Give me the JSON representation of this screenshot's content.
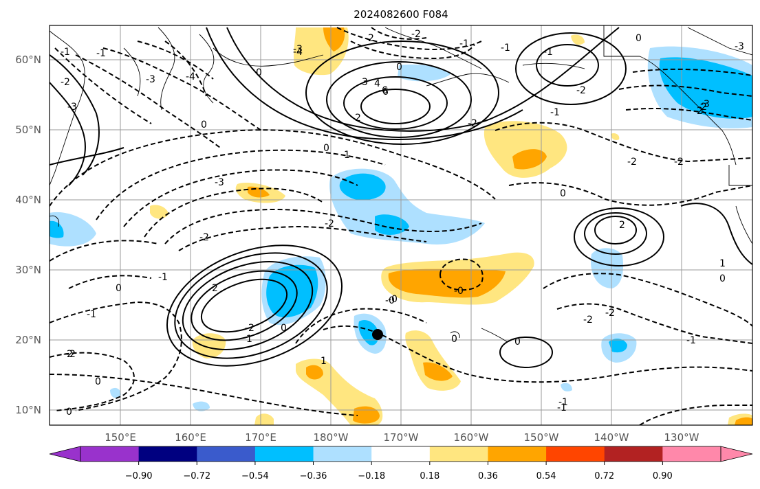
{
  "title": "2024082600 F084",
  "longitude_labels": [
    "150°E",
    "160°E",
    "170°E",
    "180°W",
    "170°W",
    "160°W",
    "150°W",
    "140°W",
    "130°W"
  ],
  "latitude_labels": [
    "60°N",
    "50°N",
    "40°N",
    "30°N",
    "20°N",
    "10°N"
  ],
  "colorbar": {
    "ticks": [
      "−0.90",
      "−0.72",
      "−0.54",
      "−0.36",
      "−0.18",
      "0.18",
      "0.36",
      "0.54",
      "0.72",
      "0.90"
    ],
    "colors": [
      "#9932cc",
      "#000080",
      "#3a5bcc",
      "#00bfff",
      "#aee0ff",
      "#ffffff",
      "#ffe680",
      "#ffa500",
      "#ff4500",
      "#b22222",
      "#ff88aa"
    ]
  },
  "contour_labels": [
    "-2",
    "-3",
    "-1",
    "-4",
    "-3",
    "0",
    "-1",
    "-2",
    "-3",
    "-4",
    "-6",
    "0",
    "-2",
    "-1",
    "-2",
    "0",
    "-3",
    "0",
    "1",
    "0",
    "-1",
    "-2",
    "-3",
    "-2",
    "0",
    "-1",
    "-2",
    "-3",
    "-2",
    "-2",
    "-2",
    "-2",
    "2",
    "-2",
    "1",
    "0",
    "-0",
    "-0",
    "0",
    "-1",
    "0",
    "0",
    "-1",
    "-2",
    "-1",
    "-2",
    "2",
    "1",
    "0",
    "2",
    "0",
    "-1",
    "1",
    "-0",
    "0",
    "3",
    "4",
    "6",
    "-2",
    "-1",
    "-2",
    "-2",
    "-1"
  ],
  "marker": "tropical-cyclone-position"
}
